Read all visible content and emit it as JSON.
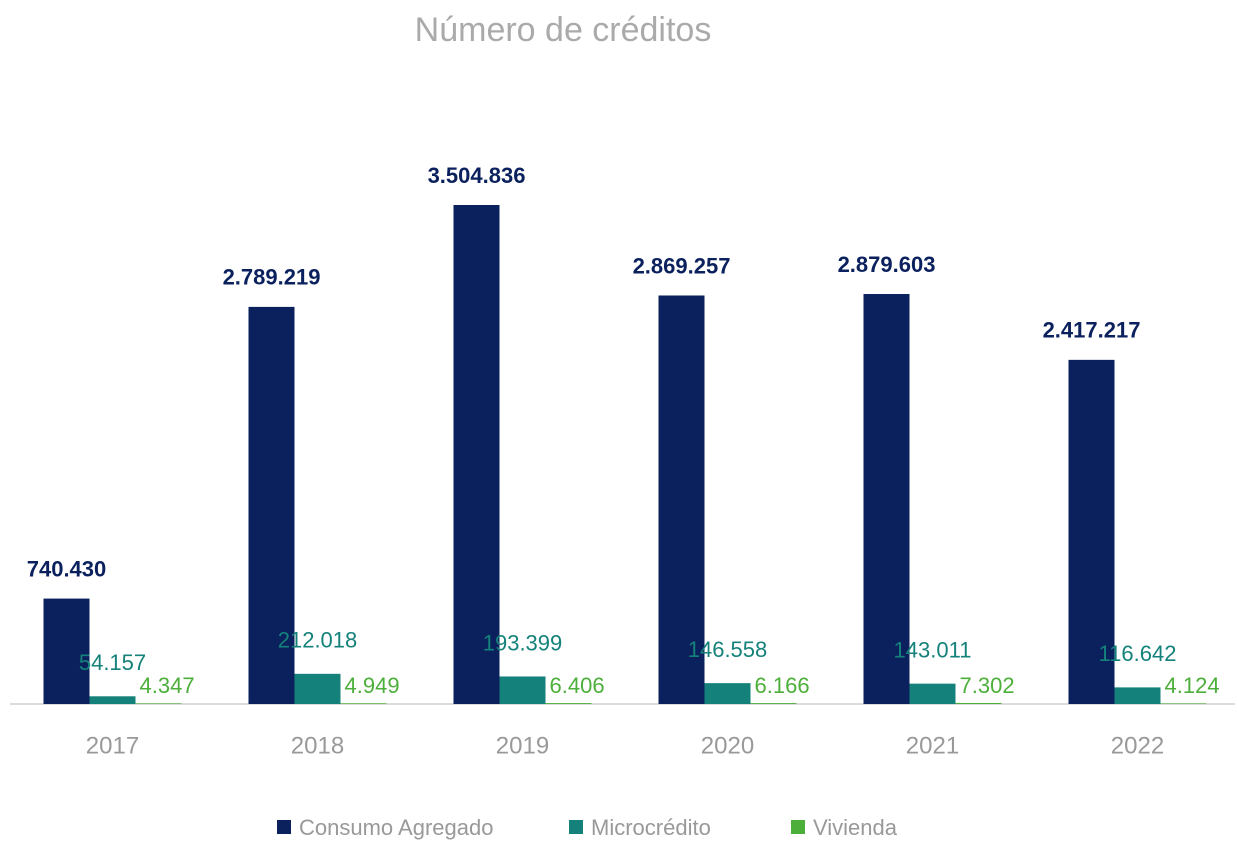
{
  "chart_data": {
    "type": "bar",
    "title": "Número de créditos",
    "categories": [
      "2017",
      "2018",
      "2019",
      "2020",
      "2021",
      "2022"
    ],
    "series": [
      {
        "name": "Consumo Agregado",
        "color": "#0b215e",
        "values": [
          740430,
          2789219,
          3504836,
          2869257,
          2879603,
          2417217
        ],
        "value_labels": [
          "740.430",
          "2.789.219",
          "3.504.836",
          "2.869.257",
          "2.879.603",
          "2.417.217"
        ]
      },
      {
        "name": "Microcrédito",
        "color": "#14827a",
        "values": [
          54157,
          212018,
          193399,
          146558,
          143011,
          116642
        ],
        "value_labels": [
          "54.157",
          "212.018",
          "193.399",
          "146.558",
          "143.011",
          "116.642"
        ]
      },
      {
        "name": "Vivienda",
        "color": "#4caf3a",
        "values": [
          4347,
          4949,
          6406,
          6166,
          7302,
          4124
        ],
        "value_labels": [
          "4.347",
          "4.949",
          "6.406",
          "6.166",
          "7.302",
          "4.124"
        ]
      }
    ],
    "legend": "bottom"
  }
}
